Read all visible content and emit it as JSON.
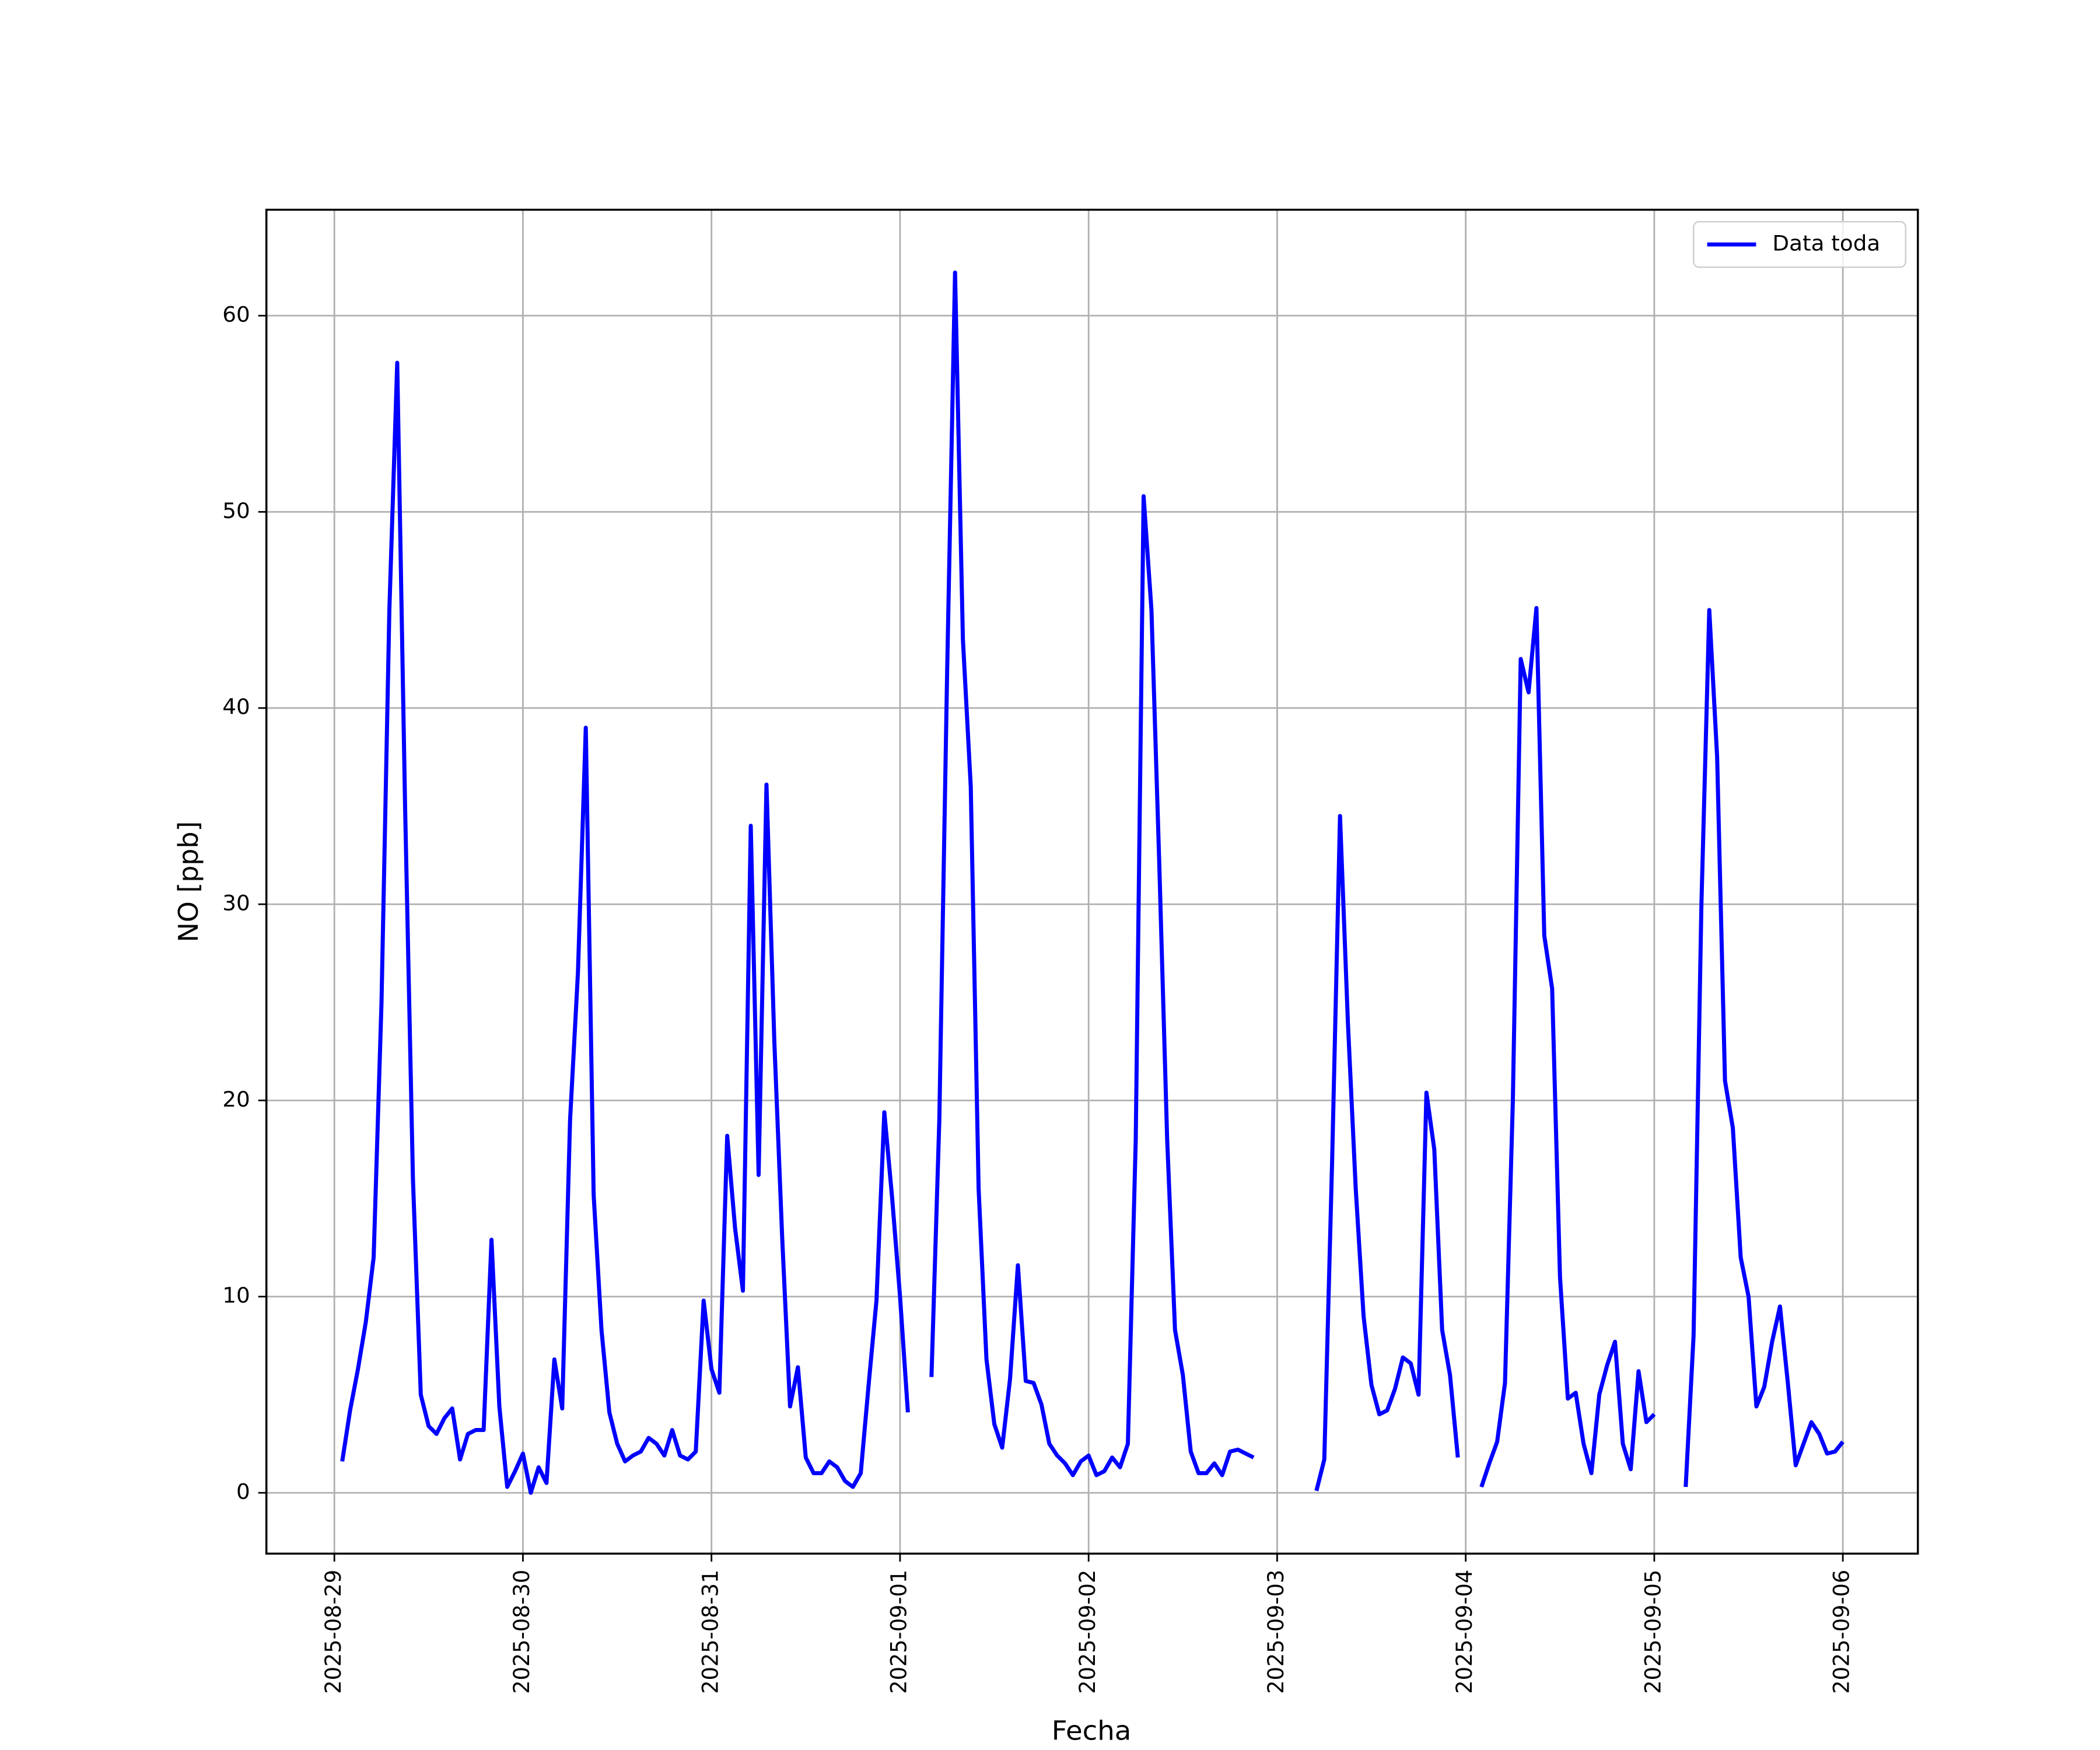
{
  "chart_data": {
    "type": "line",
    "xlabel": "Fecha",
    "ylabel": "NO [ppb]",
    "x": [
      1,
      2,
      3,
      4,
      5,
      6,
      7,
      8,
      9,
      10,
      11,
      12,
      13,
      14,
      15,
      16,
      17,
      18,
      19,
      20,
      21,
      22,
      23,
      24,
      25,
      26,
      27,
      28,
      29,
      30,
      31,
      32,
      33,
      34,
      35,
      36,
      37,
      38,
      39,
      40,
      41,
      42,
      43,
      44,
      45,
      46,
      47,
      48,
      49,
      50,
      51,
      52,
      53,
      54,
      55,
      56,
      57,
      58,
      59,
      60,
      61,
      62,
      63,
      64,
      65,
      66,
      67,
      68,
      69,
      70,
      71,
      72,
      73,
      74,
      76,
      77,
      78,
      79,
      80,
      81,
      82,
      83,
      84,
      85,
      86,
      87,
      88,
      89,
      90,
      91,
      92,
      93,
      94,
      95,
      96,
      97,
      98,
      99,
      100,
      101,
      102,
      103,
      104,
      105,
      106,
      107,
      108,
      109,
      110,
      111,
      112,
      113,
      114,
      115,
      116,
      117,
      118,
      125,
      126,
      127,
      128,
      129,
      130,
      131,
      132,
      133,
      134,
      135,
      136,
      137,
      138,
      139,
      140,
      141,
      142,
      143,
      144,
      146,
      147,
      148,
      149,
      150,
      151,
      152,
      153,
      154,
      155,
      156,
      157,
      158,
      159,
      160,
      161,
      162,
      163,
      164,
      165,
      166,
      167,
      168,
      169,
      172,
      173,
      174,
      175,
      176,
      177,
      178,
      179,
      180,
      181,
      182,
      183,
      184,
      185,
      186,
      187,
      188,
      189,
      190,
      191,
      192
    ],
    "series": [
      {
        "name": "Data toda",
        "color": "#0000ff",
        "values": [
          1.6,
          4.2,
          6.3,
          8.7,
          12,
          25,
          45,
          57.6,
          35,
          16,
          5,
          3.4,
          3,
          3.8,
          4.3,
          1.7,
          3,
          3.2,
          3.2,
          12.9,
          4.4,
          0.3,
          1.1,
          2,
          0,
          1.3,
          0.5,
          6.8,
          4.3,
          19,
          26.5,
          39,
          15.2,
          8.3,
          4.1,
          2.5,
          1.6,
          1.9,
          2.1,
          2.8,
          2.5,
          1.9,
          3.2,
          1.9,
          1.7,
          2.1,
          9.8,
          6.3,
          5.1,
          18.2,
          13.5,
          10.3,
          34,
          16.2,
          36.1,
          23,
          13,
          4.4,
          6.4,
          1.8,
          1,
          1,
          1.6,
          1.3,
          0.6,
          0.3,
          1,
          5.5,
          9.8,
          19.4,
          15,
          10,
          4.1,
          null,
          5.9,
          19,
          42,
          62.2,
          43.5,
          36,
          15.5,
          6.8,
          3.5,
          2.3,
          5.8,
          11.6,
          5.7,
          5.6,
          4.5,
          2.5,
          1.9,
          1.5,
          0.9,
          1.6,
          1.9,
          0.9,
          1.1,
          1.8,
          1.3,
          2.5,
          18,
          50.8,
          45,
          32,
          18,
          8.3,
          6,
          2.1,
          1,
          1,
          1.5,
          0.9,
          2.1,
          2.2,
          2,
          1.8,
          null,
          0.1,
          1.7,
          17,
          34.5,
          24,
          15.5,
          9,
          5.5,
          4,
          4.2,
          5.3,
          6.9,
          6.6,
          5,
          20.4,
          17.5,
          8.3,
          6,
          1.8,
          null,
          0.3,
          1.5,
          2.6,
          5.6,
          20,
          42.5,
          40.8,
          45.1,
          28.4,
          25.7,
          11,
          4.8,
          5.1,
          2.5,
          1,
          5,
          6.5,
          7.7,
          2.5,
          1.2,
          6.2,
          3.6,
          4,
          null,
          0.3,
          8,
          30,
          45,
          37.5,
          21,
          18.6,
          12,
          10,
          4.4,
          5.4,
          7.7,
          9.5,
          5.6,
          1.4,
          2.5,
          3.6,
          3,
          2,
          2.1,
          2.6
        ]
      }
    ],
    "xlim": [
      -8.65,
      201.55
    ],
    "xticks": [
      {
        "value": 0,
        "label": "2025-08-29"
      },
      {
        "value": 24,
        "label": "2025-08-30"
      },
      {
        "value": 48,
        "label": "2025-08-31"
      },
      {
        "value": 72,
        "label": "2025-09-01"
      },
      {
        "value": 96,
        "label": "2025-09-02"
      },
      {
        "value": 120,
        "label": "2025-09-03"
      },
      {
        "value": 144,
        "label": "2025-09-04"
      },
      {
        "value": 168,
        "label": "2025-09-05"
      },
      {
        "value": 192,
        "label": "2025-09-06"
      }
    ],
    "ylim": [
      -3.1,
      65.4
    ],
    "yticks": [
      0,
      10,
      20,
      30,
      40,
      50,
      60
    ],
    "grid": true,
    "legend": "upper right"
  }
}
